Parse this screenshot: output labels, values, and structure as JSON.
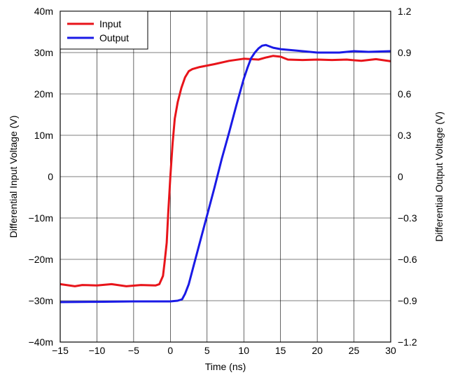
{
  "chart_data": {
    "type": "line",
    "xlabel": "Time (ns)",
    "ylabel_left": "Differential Input Voltage (V)",
    "ylabel_right": "Differential Output Voltage (V)",
    "xlim": [
      -15,
      30
    ],
    "ylim_left": [
      -0.04,
      0.04
    ],
    "ylim_right": [
      -1.2,
      1.2
    ],
    "grid": true,
    "legend_position": "top-left",
    "x_ticks": [
      -15,
      -10,
      -5,
      0,
      5,
      10,
      15,
      20,
      25,
      30
    ],
    "x_tick_labels": [
      "−15",
      "−10",
      "−5",
      "0",
      "5",
      "10",
      "15",
      "20",
      "25",
      "30"
    ],
    "y_left_ticks": [
      -0.04,
      -0.03,
      -0.02,
      -0.01,
      0,
      0.01,
      0.02,
      0.03,
      0.04
    ],
    "y_left_tick_labels": [
      "−40m",
      "−30m",
      "−20m",
      "−10m",
      "0",
      "10m",
      "20m",
      "30m",
      "40m"
    ],
    "y_right_ticks": [
      -1.2,
      -0.9,
      -0.6,
      -0.3,
      0,
      0.3,
      0.6,
      0.9,
      1.2
    ],
    "y_right_tick_labels": [
      "−1.2",
      "−0.9",
      "−0.6",
      "−0.3",
      "0",
      "0.3",
      "0.6",
      "0.9",
      "1.2"
    ],
    "series": [
      {
        "name": "Input",
        "axis": "left",
        "color": "#e8141a",
        "x": [
          -15,
          -13,
          -12,
          -10,
          -8,
          -6,
          -4,
          -2,
          -1.5,
          -1,
          -0.8,
          -0.5,
          -0.3,
          0,
          0.3,
          0.6,
          1,
          1.5,
          2,
          2.5,
          3,
          4,
          6,
          8,
          10,
          12,
          13,
          14,
          15,
          16,
          18,
          20,
          22,
          24,
          26,
          28,
          30
        ],
        "y": [
          -0.026,
          -0.0265,
          -0.0262,
          -0.0263,
          -0.026,
          -0.0265,
          -0.0262,
          -0.0263,
          -0.026,
          -0.024,
          -0.021,
          -0.016,
          -0.009,
          0.0,
          0.008,
          0.014,
          0.018,
          0.0215,
          0.024,
          0.0255,
          0.026,
          0.0265,
          0.0272,
          0.028,
          0.0285,
          0.0283,
          0.0288,
          0.0292,
          0.029,
          0.0283,
          0.0282,
          0.0283,
          0.0282,
          0.0283,
          0.028,
          0.0284,
          0.0279
        ]
      },
      {
        "name": "Output",
        "axis": "right",
        "color": "#1a1ae6",
        "x": [
          -15,
          -10,
          -5,
          0,
          1,
          1.6,
          2,
          2.5,
          3,
          4,
          5,
          6,
          7,
          8,
          9,
          10,
          10.5,
          11,
          11.5,
          12,
          12.5,
          13,
          14,
          15,
          17,
          20,
          23,
          25,
          27,
          30
        ],
        "y": [
          -0.91,
          -0.908,
          -0.905,
          -0.905,
          -0.9,
          -0.89,
          -0.85,
          -0.78,
          -0.68,
          -0.48,
          -0.28,
          -0.08,
          0.13,
          0.32,
          0.52,
          0.71,
          0.79,
          0.86,
          0.9,
          0.93,
          0.95,
          0.955,
          0.935,
          0.925,
          0.915,
          0.9,
          0.9,
          0.91,
          0.905,
          0.91
        ]
      }
    ]
  }
}
